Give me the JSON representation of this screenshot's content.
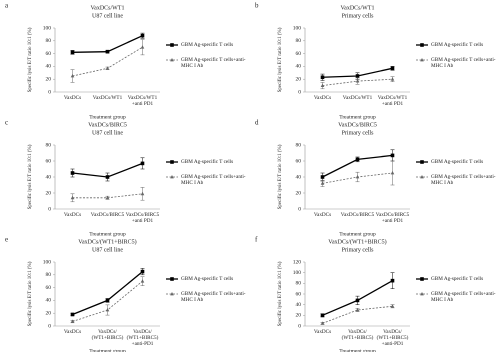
{
  "chart_data": [
    {
      "type": "line",
      "label": "a",
      "title": "VaxDCs/WT1",
      "subtitle": "U87 cell line",
      "x_label": "Treatment group",
      "y_label": "Specific lysis E/T ratio 10:1 (%)",
      "categories": [
        "VaxDCs",
        "VaxDCs/WT1",
        "VaxDCs/WT1 +anti PD1"
      ],
      "ylim": [
        0,
        100
      ],
      "yticks": [
        0,
        20,
        40,
        60,
        80,
        100
      ],
      "series": [
        {
          "name": "GBM Ag-specific T cells",
          "color": "#000000",
          "style": "solid",
          "marker": "square",
          "values": [
            62,
            63,
            88
          ],
          "errors": [
            3,
            2,
            4
          ]
        },
        {
          "name": "GBM Ag-specific T cells+anti-MHC I Ab",
          "color": "#666666",
          "style": "dashed",
          "marker": "triangle",
          "values": [
            25,
            37,
            70
          ],
          "errors": [
            10,
            2,
            12
          ]
        }
      ]
    },
    {
      "type": "line",
      "label": "b",
      "title": "VaxDCs/WT1",
      "subtitle": "Primary cells",
      "x_label": "Treatment group",
      "y_label": "Specific lysis E/T ratio 10:1 (%)",
      "categories": [
        "VaxDCs",
        "VaxDCs/WT1",
        "VaxDCs/WT1 +anti PD1"
      ],
      "ylim": [
        0,
        100
      ],
      "yticks": [
        0,
        20,
        40,
        60,
        80,
        100
      ],
      "series": [
        {
          "name": "GBM Ag-specific T cells",
          "color": "#000000",
          "style": "solid",
          "marker": "square",
          "values": [
            23,
            25,
            37
          ],
          "errors": [
            5,
            5,
            3
          ]
        },
        {
          "name": "GBM Ag-specific T cells+anti-MHC I Ab",
          "color": "#666666",
          "style": "dashed",
          "marker": "triangle",
          "values": [
            10,
            17,
            20
          ],
          "errors": [
            5,
            5,
            4
          ]
        }
      ]
    },
    {
      "type": "line",
      "label": "c",
      "title": "VaxDCs/BIRC5",
      "subtitle": "U87 cell line",
      "x_label": "Treatment group",
      "y_label": "Specific lysis E/T ratio 10:1 (%)",
      "categories": [
        "VaxDCs",
        "VaxDCs/BIRC5",
        "VaxDCs/BIRC5 +anti PD1"
      ],
      "ylim": [
        0,
        80
      ],
      "yticks": [
        0,
        20,
        40,
        60,
        80
      ],
      "series": [
        {
          "name": "GBM Ag-specific T cells",
          "color": "#000000",
          "style": "solid",
          "marker": "square",
          "values": [
            45,
            40,
            57
          ],
          "errors": [
            5,
            5,
            7
          ]
        },
        {
          "name": "GBM Ag-specific T cells+anti-MHC I Ab",
          "color": "#666666",
          "style": "dashed",
          "marker": "triangle",
          "values": [
            14,
            14,
            19
          ],
          "errors": [
            5,
            2,
            8
          ]
        }
      ]
    },
    {
      "type": "line",
      "label": "d",
      "title": "VaxDCs/BIRC5",
      "subtitle": "Primary cells",
      "x_label": "Treatment group",
      "y_label": "Specific lysis E/T ratio 10:1 (%)",
      "categories": [
        "VaxDCs",
        "VaxDCs/BIRC5",
        "VaxDCs/BIRC5 +anti PD1"
      ],
      "ylim": [
        0,
        80
      ],
      "yticks": [
        0,
        20,
        40,
        60,
        80
      ],
      "series": [
        {
          "name": "GBM Ag-specific T cells",
          "color": "#000000",
          "style": "solid",
          "marker": "square",
          "values": [
            40,
            62,
            67
          ],
          "errors": [
            5,
            3,
            7
          ]
        },
        {
          "name": "GBM Ag-specific T cells+anti-MHC I Ab",
          "color": "#666666",
          "style": "dashed",
          "marker": "triangle",
          "values": [
            32,
            40,
            45
          ],
          "errors": [
            4,
            6,
            15
          ]
        }
      ]
    },
    {
      "type": "line",
      "label": "e",
      "title": "VaxDCs/(WT1+BIRC5)",
      "subtitle": "U87 cell line",
      "x_label": "Treatment group",
      "y_label": "Specific lysis E/T ratio 10:1 (%)",
      "categories": [
        "VaxDCs",
        "VaxDCs/ (WT1+BIRC5)",
        "VaxDCs/ (WT1+BIRC5) +anti-PD1"
      ],
      "ylim": [
        0,
        100
      ],
      "yticks": [
        0,
        20,
        40,
        60,
        80,
        100
      ],
      "series": [
        {
          "name": "GBM Ag-specific T cells",
          "color": "#000000",
          "style": "solid",
          "marker": "square",
          "values": [
            18,
            40,
            85
          ],
          "errors": [
            2,
            3,
            5
          ]
        },
        {
          "name": "GBM Ag-specific T cells+anti-MHC I Ab",
          "color": "#666666",
          "style": "dashed",
          "marker": "triangle",
          "values": [
            7,
            25,
            70
          ],
          "errors": [
            2,
            8,
            7
          ]
        }
      ]
    },
    {
      "type": "line",
      "label": "f",
      "title": "VaxDCs/(WT1+BIRC5)",
      "subtitle": "Primary cells",
      "x_label": "Treatment group",
      "y_label": "Specific lysis E/T ratio 10:1 (%)",
      "categories": [
        "VaxDCs",
        "VaxDCs/ (WT1+BIRC5)",
        "VaxDCs/ (WT1+BIRC5) +anti-PD1"
      ],
      "ylim": [
        0,
        120
      ],
      "yticks": [
        0,
        20,
        40,
        60,
        80,
        100,
        120
      ],
      "series": [
        {
          "name": "GBM Ag-specific T cells",
          "color": "#000000",
          "style": "solid",
          "marker": "square",
          "values": [
            20,
            48,
            85
          ],
          "errors": [
            3,
            8,
            15
          ]
        },
        {
          "name": "GBM Ag-specific T cells+anti-MHC I Ab",
          "color": "#666666",
          "style": "dashed",
          "marker": "triangle",
          "values": [
            5,
            30,
            37
          ],
          "errors": [
            2,
            3,
            3
          ]
        }
      ]
    }
  ]
}
